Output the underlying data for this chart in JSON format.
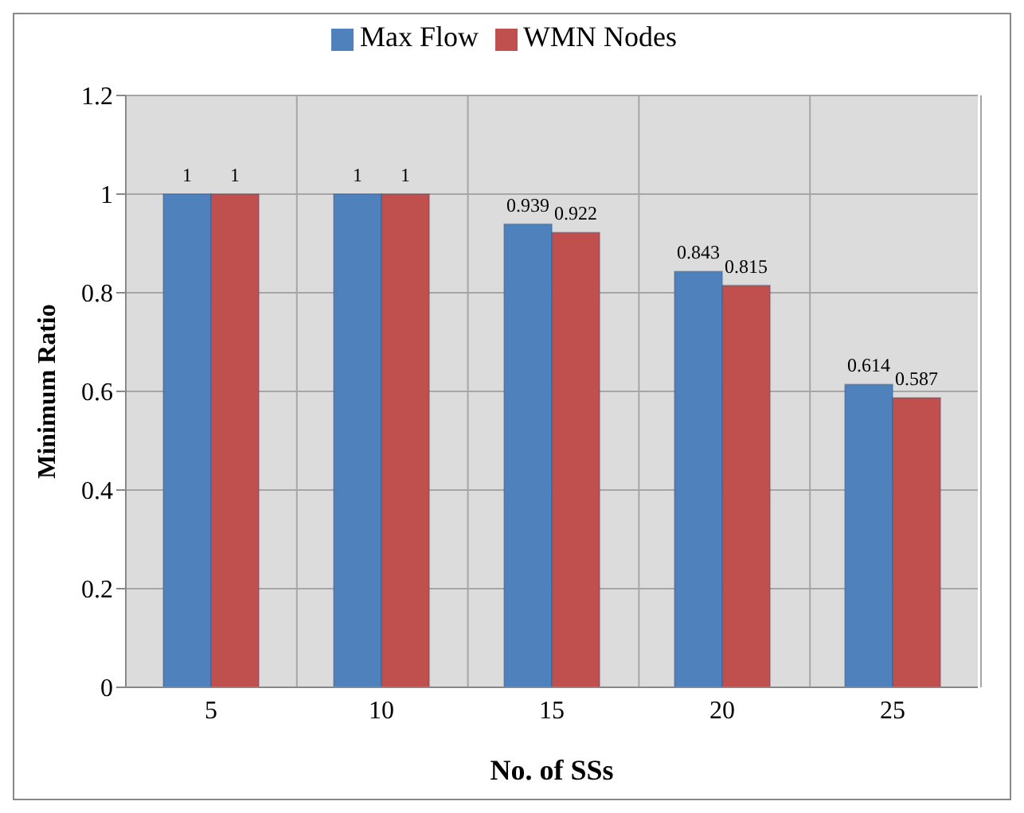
{
  "chart_data": {
    "type": "bar",
    "xlabel": "No. of SSs",
    "ylabel": "Minimum Ratio",
    "categories": [
      "5",
      "10",
      "15",
      "20",
      "25"
    ],
    "series": [
      {
        "name": "Max Flow",
        "color": "#4f81bd",
        "values": [
          1,
          1,
          0.939,
          0.843,
          0.614
        ]
      },
      {
        "name": "WMN Nodes",
        "color": "#c0504d",
        "values": [
          1,
          1,
          0.922,
          0.815,
          0.587
        ]
      }
    ],
    "ylim": [
      0,
      1.2
    ],
    "yticks": [
      0,
      0.2,
      0.4,
      0.6,
      0.8,
      1,
      1.2
    ],
    "grid": true,
    "legend": "top",
    "data_labels": true
  }
}
